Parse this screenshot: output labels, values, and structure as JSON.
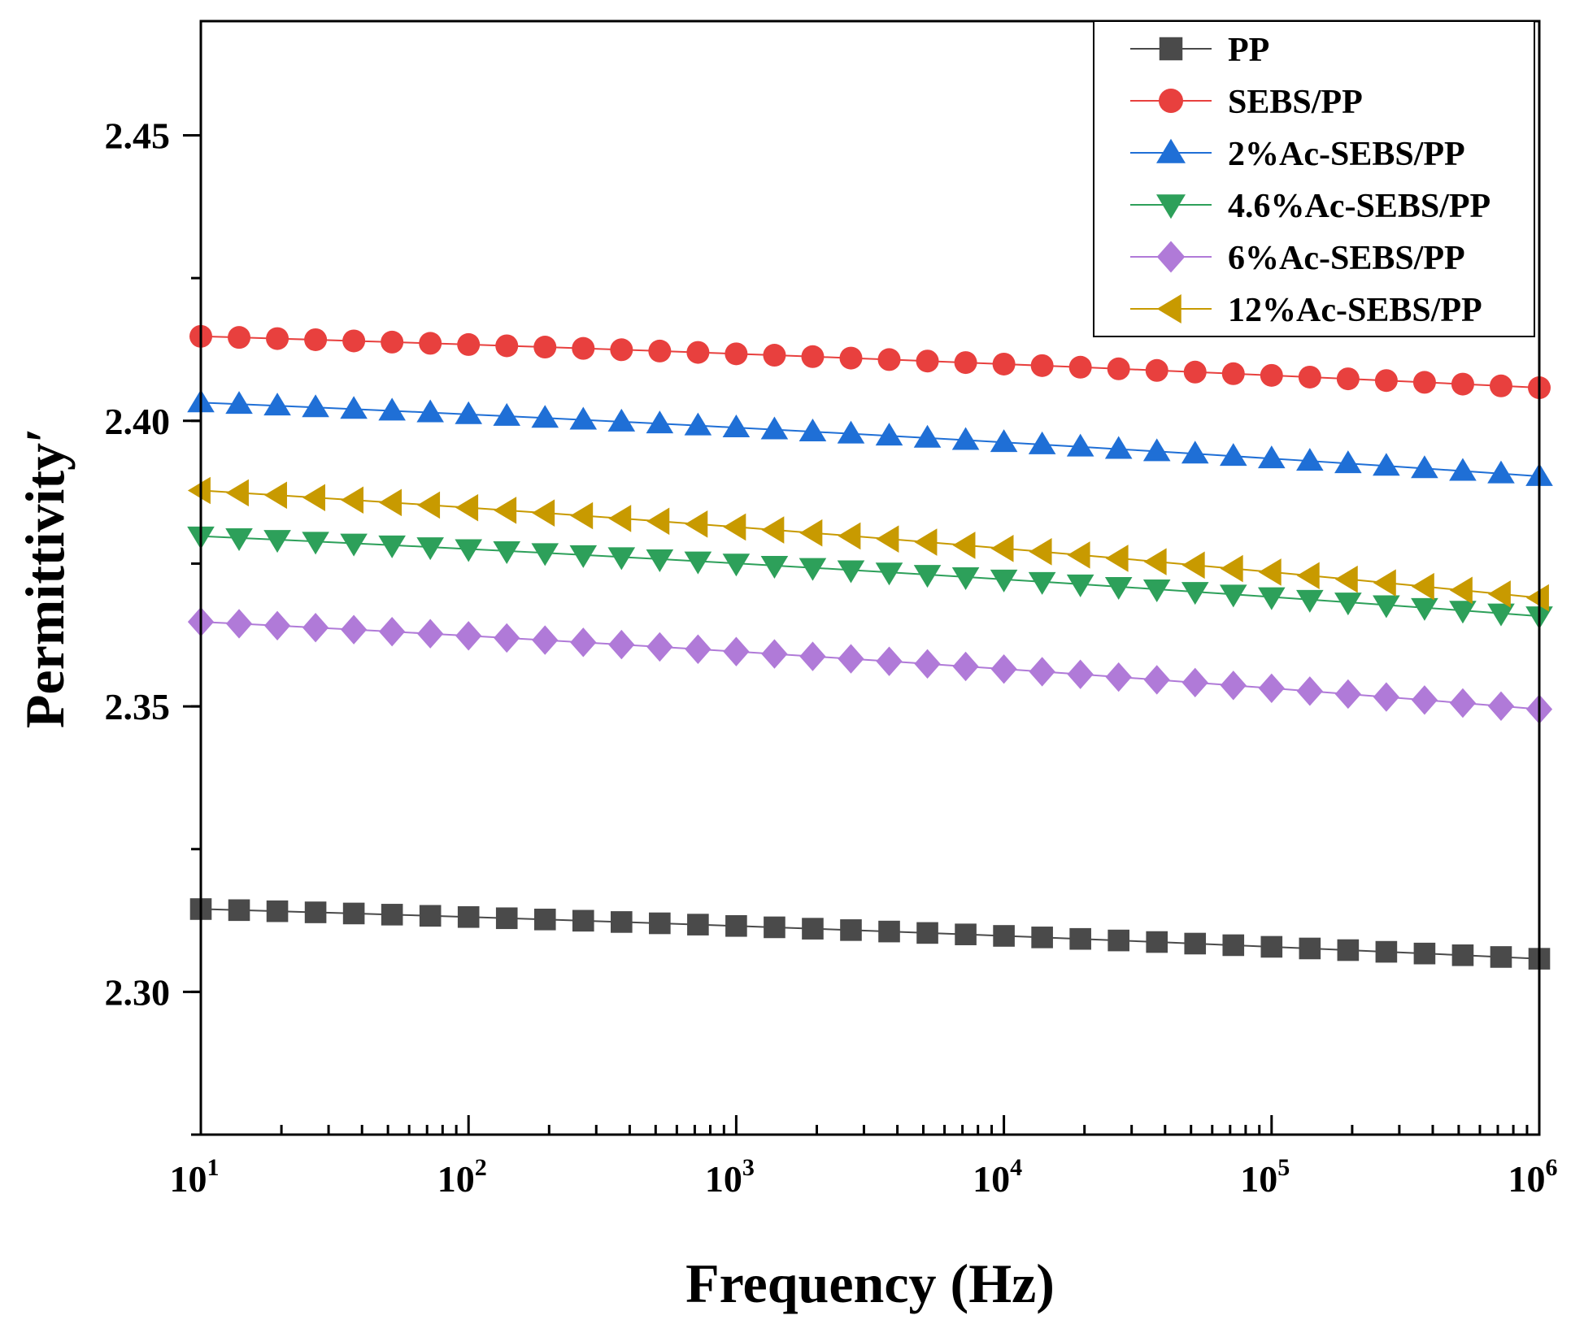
{
  "chart_data": {
    "type": "line",
    "title": "",
    "xlabel": "Frequency (Hz)",
    "ylabel": "Permittivity′",
    "xscale": "log",
    "xlim": [
      10,
      1000000
    ],
    "ylim": [
      2.275,
      2.47
    ],
    "x_ticks": [
      {
        "value": 10,
        "base": "10",
        "exp": "1"
      },
      {
        "value": 100,
        "base": "10",
        "exp": "2"
      },
      {
        "value": 1000,
        "base": "10",
        "exp": "3"
      },
      {
        "value": 10000,
        "base": "10",
        "exp": "4"
      },
      {
        "value": 100000,
        "base": "10",
        "exp": "5"
      },
      {
        "value": 1000000,
        "base": "10",
        "exp": "6"
      }
    ],
    "y_ticks": [
      {
        "value": 2.3,
        "label": "2.30"
      },
      {
        "value": 2.35,
        "label": "2.35"
      },
      {
        "value": 2.4,
        "label": "2.40"
      },
      {
        "value": 2.45,
        "label": "2.45"
      }
    ],
    "legend_position": "top-right",
    "grid": false,
    "series": [
      {
        "name": "PP",
        "color": "#4a4a4a",
        "marker": "square",
        "start": 2.3145,
        "end": 2.3058
      },
      {
        "name": "SEBS/PP",
        "color": "#e8403e",
        "marker": "circle",
        "start": 2.4148,
        "end": 2.4058
      },
      {
        "name": "2%Ac-SEBS/PP",
        "color": "#1f6fd6",
        "marker": "triangle-up",
        "start": 2.4032,
        "end": 2.3903
      },
      {
        "name": "4.6%Ac-SEBS/PP",
        "color": "#2da05a",
        "marker": "triangle-down",
        "start": 2.3798,
        "end": 2.3658
      },
      {
        "name": "6%Ac-SEBS/PP",
        "color": "#b07ad8",
        "marker": "diamond",
        "start": 2.3648,
        "end": 2.3495
      },
      {
        "name": "12%Ac-SEBS/PP",
        "color": "#c89a00",
        "marker": "triangle-left",
        "start": 2.3878,
        "end": 2.369
      }
    ],
    "points_per_series": 36
  }
}
